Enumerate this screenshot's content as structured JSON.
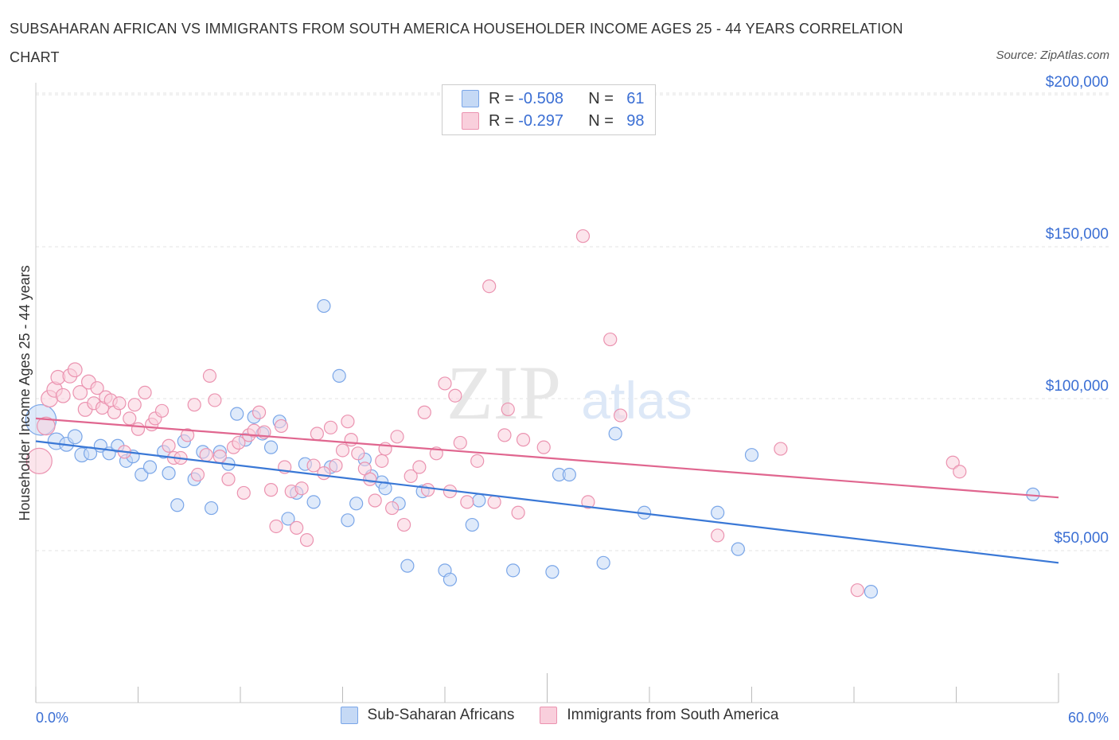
{
  "title": "SUBSAHARAN AFRICAN VS IMMIGRANTS FROM SOUTH AMERICA HOUSEHOLDER INCOME AGES 25 - 44 YEARS CORRELATION CHART",
  "source": "Source: ZipAtlas.com",
  "watermark": {
    "zip": "ZIP",
    "atlas": "atlas"
  },
  "stats": [
    {
      "r_label": "R =",
      "r": "-0.508",
      "n_label": "N =",
      "n": "61",
      "color": "#7aa6e8",
      "fill": "#c5d9f5"
    },
    {
      "r_label": "R =",
      "r": "-0.297",
      "n_label": "N =",
      "n": "98",
      "color": "#eb93b0",
      "fill": "#f9cfdc"
    }
  ],
  "legend": [
    {
      "label": "Sub-Saharan Africans",
      "color": "#7aa6e8",
      "fill": "#c5d9f5"
    },
    {
      "label": "Immigrants from South America",
      "color": "#eb93b0",
      "fill": "#f9cfdc"
    }
  ],
  "chart_data": {
    "type": "scatter",
    "ylabel": "Householder Income Ages 25 - 44 years",
    "xlim": [
      0,
      60
    ],
    "ylim": [
      0,
      205000
    ],
    "x_tick_labels": [
      "0.0%",
      "60.0%"
    ],
    "y_ticks": [
      50000,
      100000,
      150000,
      200000
    ],
    "y_tick_labels": [
      "$50,000",
      "$100,000",
      "$150,000",
      "$200,000"
    ],
    "series": [
      {
        "name": "Sub-Saharan Africans",
        "color": "#3a78d6",
        "trend": [
          [
            0,
            86000
          ],
          [
            60,
            46000
          ]
        ],
        "points": [
          [
            0.3,
            93000,
            2.4
          ],
          [
            1.2,
            86000,
            1.3
          ],
          [
            1.8,
            85000,
            1.1
          ],
          [
            2.3,
            87500,
            1.1
          ],
          [
            2.7,
            81500,
            1.1
          ],
          [
            3.2,
            82000,
            1
          ],
          [
            3.8,
            84500,
            1
          ],
          [
            4.3,
            82000,
            1
          ],
          [
            4.8,
            84500,
            1
          ],
          [
            5.3,
            79500,
            1
          ],
          [
            5.7,
            81000,
            1
          ],
          [
            6.2,
            75000,
            1
          ],
          [
            6.7,
            77500,
            1
          ],
          [
            7.5,
            82500,
            1
          ],
          [
            7.8,
            75500,
            1
          ],
          [
            8.3,
            65000,
            1
          ],
          [
            8.7,
            86000,
            1
          ],
          [
            9.3,
            73500,
            1
          ],
          [
            9.8,
            82500,
            1
          ],
          [
            10.3,
            64000,
            1
          ],
          [
            10.8,
            82500,
            1
          ],
          [
            11.3,
            78500,
            1
          ],
          [
            11.8,
            95000,
            1
          ],
          [
            12.3,
            86500,
            1
          ],
          [
            12.8,
            94000,
            1
          ],
          [
            13.3,
            88500,
            1
          ],
          [
            13.8,
            84000,
            1
          ],
          [
            14.3,
            92500,
            1
          ],
          [
            14.8,
            60500,
            1
          ],
          [
            15.3,
            69000,
            1
          ],
          [
            15.8,
            78500,
            1
          ],
          [
            16.3,
            66000,
            1
          ],
          [
            16.9,
            130500,
            1
          ],
          [
            17.3,
            77500,
            1
          ],
          [
            17.8,
            107500,
            1
          ],
          [
            18.3,
            60000,
            1
          ],
          [
            18.8,
            65500,
            1
          ],
          [
            19.3,
            80000,
            1
          ],
          [
            19.7,
            74500,
            1
          ],
          [
            20.3,
            72500,
            1
          ],
          [
            20.5,
            70500,
            1
          ],
          [
            21.3,
            65500,
            1
          ],
          [
            21.8,
            45000,
            1
          ],
          [
            22.7,
            69500,
            1
          ],
          [
            24.0,
            43500,
            1
          ],
          [
            24.3,
            40500,
            1
          ],
          [
            25.6,
            58500,
            1
          ],
          [
            26.0,
            66500,
            1
          ],
          [
            28.0,
            43500,
            1
          ],
          [
            30.3,
            43000,
            1
          ],
          [
            30.7,
            75000,
            1
          ],
          [
            31.3,
            75000,
            1
          ],
          [
            33.3,
            46000,
            1
          ],
          [
            34.0,
            88500,
            1
          ],
          [
            35.7,
            62500,
            1
          ],
          [
            40.0,
            62500,
            1
          ],
          [
            41.2,
            50500,
            1
          ],
          [
            42.0,
            81500,
            1
          ],
          [
            49.0,
            36500,
            1
          ],
          [
            58.5,
            68500,
            1
          ]
        ]
      },
      {
        "name": "Immigrants from South America",
        "color": "#e0668f",
        "trend": [
          [
            0,
            93500
          ],
          [
            60,
            67500
          ]
        ],
        "points": [
          [
            0.2,
            79500,
            2.0
          ],
          [
            0.6,
            91000,
            1.4
          ],
          [
            0.8,
            100000,
            1.3
          ],
          [
            1.1,
            103000,
            1.2
          ],
          [
            1.3,
            107000,
            1.1
          ],
          [
            1.6,
            101000,
            1.1
          ],
          [
            2.0,
            107500,
            1.1
          ],
          [
            2.3,
            109500,
            1.1
          ],
          [
            2.6,
            102000,
            1.1
          ],
          [
            2.9,
            96500,
            1.1
          ],
          [
            3.1,
            105500,
            1.1
          ],
          [
            3.4,
            98500,
            1
          ],
          [
            3.6,
            103500,
            1
          ],
          [
            3.9,
            97000,
            1
          ],
          [
            4.1,
            100500,
            1
          ],
          [
            4.4,
            99500,
            1
          ],
          [
            4.6,
            95500,
            1
          ],
          [
            4.9,
            98500,
            1
          ],
          [
            5.2,
            82500,
            1
          ],
          [
            5.5,
            93500,
            1
          ],
          [
            5.8,
            98000,
            1
          ],
          [
            6.0,
            90000,
            1
          ],
          [
            6.4,
            102000,
            1
          ],
          [
            6.8,
            91500,
            1
          ],
          [
            7.0,
            93500,
            1
          ],
          [
            7.4,
            96000,
            1
          ],
          [
            7.8,
            84500,
            1
          ],
          [
            8.1,
            80500,
            1
          ],
          [
            8.5,
            80500,
            1
          ],
          [
            8.9,
            88000,
            1
          ],
          [
            9.3,
            98000,
            1
          ],
          [
            9.5,
            75000,
            1
          ],
          [
            10.0,
            81500,
            1
          ],
          [
            10.2,
            107500,
            1
          ],
          [
            10.5,
            99500,
            1
          ],
          [
            10.8,
            81000,
            1
          ],
          [
            11.3,
            73500,
            1
          ],
          [
            11.6,
            84000,
            1
          ],
          [
            11.9,
            85500,
            1
          ],
          [
            12.2,
            69000,
            1
          ],
          [
            12.5,
            88000,
            1
          ],
          [
            12.8,
            89500,
            1
          ],
          [
            13.1,
            95500,
            1
          ],
          [
            13.4,
            89000,
            1
          ],
          [
            13.8,
            70000,
            1
          ],
          [
            14.1,
            58000,
            1
          ],
          [
            14.4,
            91000,
            1
          ],
          [
            14.6,
            77500,
            1
          ],
          [
            15.0,
            69500,
            1
          ],
          [
            15.3,
            57500,
            1
          ],
          [
            15.6,
            70500,
            1
          ],
          [
            15.9,
            53500,
            1
          ],
          [
            16.3,
            78000,
            1
          ],
          [
            16.5,
            88500,
            1
          ],
          [
            16.9,
            75500,
            1
          ],
          [
            17.3,
            90500,
            1
          ],
          [
            17.6,
            78000,
            1
          ],
          [
            18.0,
            83000,
            1
          ],
          [
            18.3,
            92500,
            1
          ],
          [
            18.5,
            86500,
            1
          ],
          [
            18.9,
            82000,
            1
          ],
          [
            19.3,
            77000,
            1
          ],
          [
            19.6,
            73500,
            1
          ],
          [
            19.9,
            66500,
            1
          ],
          [
            20.3,
            79500,
            1
          ],
          [
            20.5,
            83500,
            1
          ],
          [
            20.9,
            64000,
            1
          ],
          [
            21.2,
            87500,
            1
          ],
          [
            21.6,
            58500,
            1
          ],
          [
            22.0,
            74500,
            1
          ],
          [
            22.5,
            77500,
            1
          ],
          [
            22.8,
            95500,
            1
          ],
          [
            23.0,
            70000,
            1
          ],
          [
            23.5,
            82000,
            1
          ],
          [
            24.0,
            105000,
            1
          ],
          [
            24.3,
            69500,
            1
          ],
          [
            24.6,
            101000,
            1
          ],
          [
            24.9,
            85500,
            1
          ],
          [
            25.3,
            66000,
            1
          ],
          [
            25.9,
            79500,
            1
          ],
          [
            26.6,
            137000,
            1
          ],
          [
            26.9,
            66000,
            1
          ],
          [
            27.5,
            88000,
            1
          ],
          [
            27.7,
            96500,
            1
          ],
          [
            28.3,
            62500,
            1
          ],
          [
            28.6,
            86500,
            1
          ],
          [
            29.8,
            84000,
            1
          ],
          [
            32.1,
            153500,
            1
          ],
          [
            32.4,
            66000,
            1
          ],
          [
            33.7,
            119500,
            1
          ],
          [
            34.3,
            94500,
            1
          ],
          [
            40.0,
            55000,
            1
          ],
          [
            43.7,
            83500,
            1
          ],
          [
            48.2,
            37000,
            1
          ],
          [
            53.8,
            79000,
            1
          ],
          [
            54.2,
            76000,
            1
          ]
        ]
      }
    ]
  }
}
